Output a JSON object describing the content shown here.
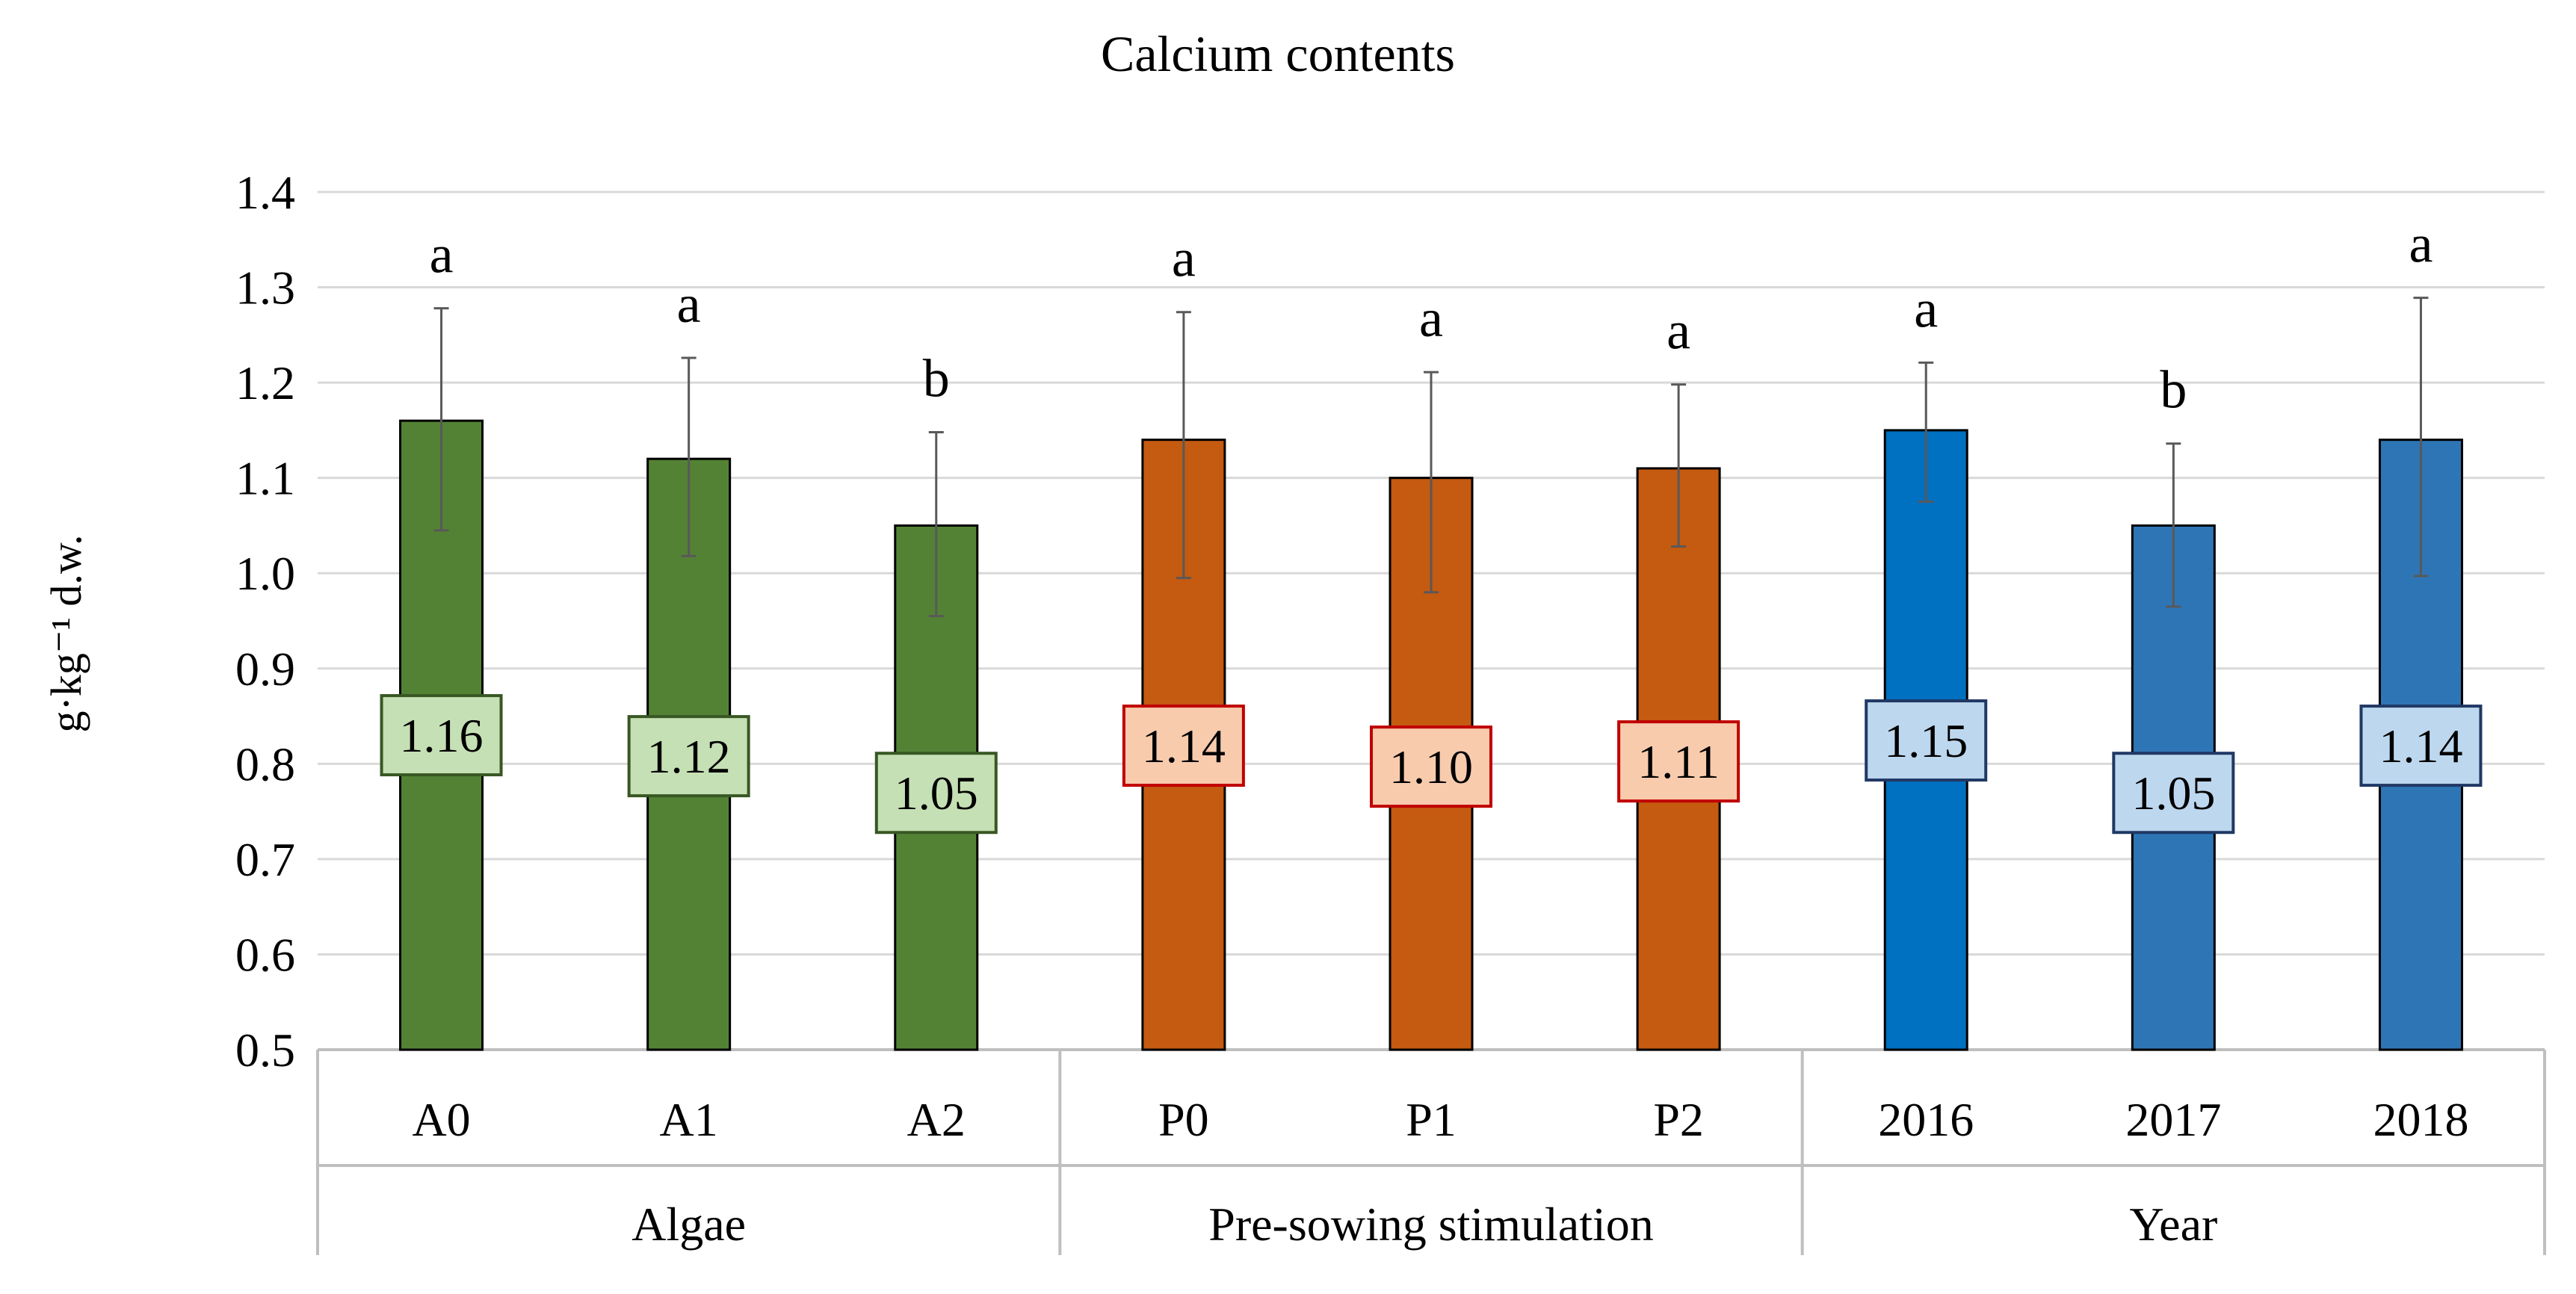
{
  "chart_data": {
    "type": "bar",
    "title": "Calcium contents",
    "ylabel": "g·kg⁻¹ d.w.",
    "xlabel": "",
    "ylim": [
      0.5,
      1.4
    ],
    "yticks": [
      "0.5",
      "0.6",
      "0.7",
      "0.8",
      "0.9",
      "1.0",
      "1.1",
      "1.2",
      "1.3",
      "1.4"
    ],
    "grid": true,
    "groups": [
      {
        "name": "Algae",
        "bar_color": "#548235",
        "label_fill": "#c5e0b4",
        "label_border": "#385723"
      },
      {
        "name": "Pre-sowing stimulation",
        "bar_color": "#c55a11",
        "label_fill": "#f8cbad",
        "label_border": "#c00000"
      },
      {
        "name": "Year",
        "bar_color": "#2e75b6",
        "label_fill": "#bdd7ee",
        "label_border": "#203864"
      }
    ],
    "categories": [
      "A0",
      "A1",
      "A2",
      "P0",
      "P1",
      "P2",
      "2016",
      "2017",
      "2018"
    ],
    "values": [
      1.16,
      1.12,
      1.05,
      1.14,
      1.1,
      1.11,
      1.15,
      1.05,
      1.14
    ],
    "value_labels": [
      "1.16",
      "1.12",
      "1.05",
      "1.14",
      "1.10",
      "1.11",
      "1.15",
      "1.05",
      "1.14"
    ],
    "error_low": [
      1.045,
      1.018,
      0.955,
      0.995,
      0.98,
      1.028,
      1.075,
      0.965,
      0.997
    ],
    "error_high": [
      1.278,
      1.226,
      1.148,
      1.274,
      1.211,
      1.198,
      1.221,
      1.136,
      1.289
    ],
    "significance": [
      "a",
      "a",
      "b",
      "a",
      "a",
      "a",
      "a",
      "b",
      "a"
    ],
    "bar_colors": [
      "#548235",
      "#548235",
      "#548235",
      "#c55a11",
      "#c55a11",
      "#c55a11",
      "#0070c0",
      "#2e75b6",
      "#2e75b6"
    ],
    "group_index": [
      0,
      0,
      0,
      1,
      1,
      1,
      2,
      2,
      2
    ]
  }
}
